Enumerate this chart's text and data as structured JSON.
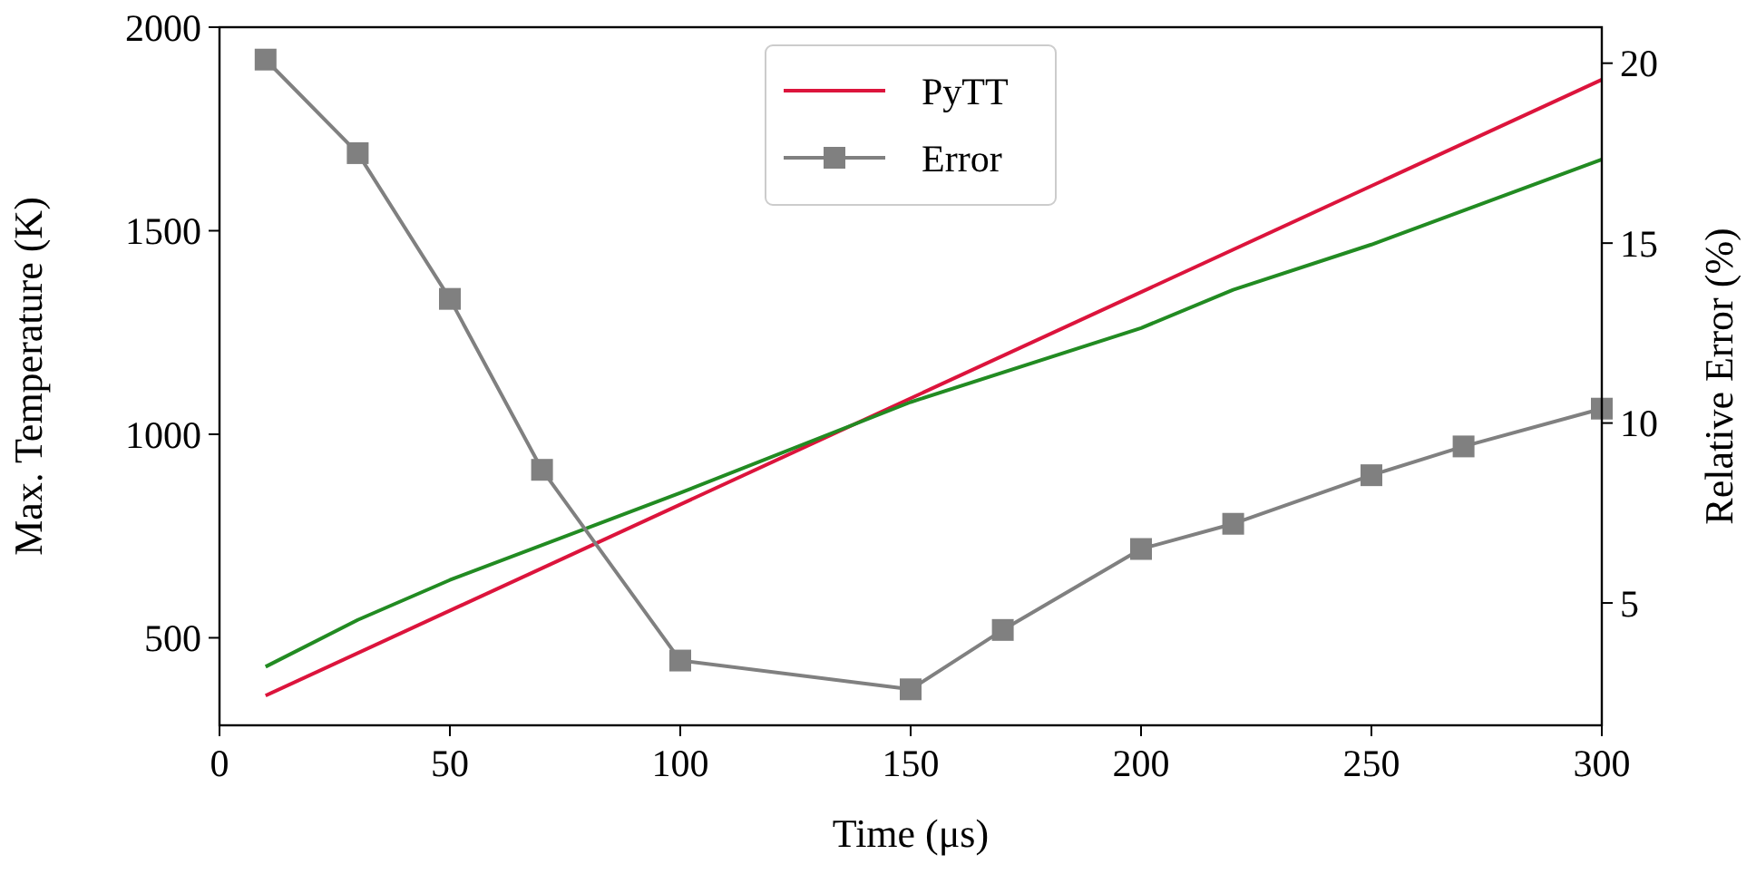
{
  "chart_data": {
    "type": "line",
    "xlabel": "Time (μs)",
    "ylabel": "Max. Temperature (K)",
    "y2label": "Relative Error (%)",
    "xlim": [
      0,
      300
    ],
    "xticks": [
      0,
      50,
      100,
      150,
      200,
      250,
      300
    ],
    "ylim": [
      285,
      2000
    ],
    "yticks": [
      500,
      1000,
      1500,
      2000
    ],
    "y2lim": [
      1.6,
      21
    ],
    "y2ticks": [
      5,
      10,
      15,
      20
    ],
    "legend": "top",
    "grid": false,
    "series": [
      {
        "name": "PyTT",
        "color": "#dc143c",
        "x": [
          10,
          300
        ],
        "values": [
          358,
          1871
        ],
        "marker": "none"
      },
      {
        "color": "#228b22",
        "x": [
          10,
          30,
          50,
          100,
          150,
          200,
          220,
          250,
          300
        ],
        "values": [
          429,
          544,
          642,
          856,
          1079,
          1261,
          1355,
          1466,
          1675
        ],
        "marker": "none"
      },
      {
        "name": "Error",
        "color": "#808080",
        "axis": "y2",
        "marker": "square",
        "x": [
          10,
          30,
          50,
          70,
          100,
          150,
          170,
          200,
          220,
          250,
          270,
          300
        ],
        "values": [
          20.1,
          17.5,
          13.45,
          8.7,
          3.4,
          2.6,
          4.25,
          6.5,
          7.2,
          8.55,
          9.35,
          10.4
        ]
      }
    ]
  }
}
